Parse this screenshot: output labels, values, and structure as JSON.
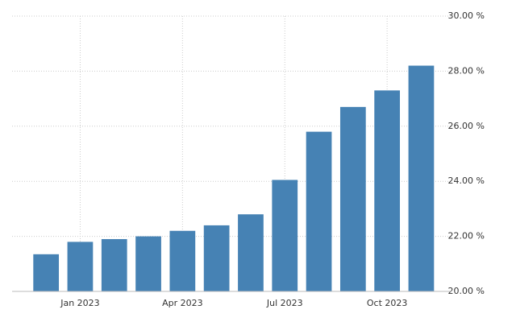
{
  "chart_data": {
    "type": "bar",
    "categories": [
      null,
      "Jan 2023",
      null,
      null,
      "Apr 2023",
      null,
      null,
      "Jul 2023",
      null,
      null,
      "Oct 2023",
      null
    ],
    "values": [
      21.35,
      21.8,
      21.9,
      22.0,
      22.2,
      22.4,
      22.8,
      24.05,
      25.8,
      26.7,
      27.3,
      28.2
    ],
    "color": "#4682b4",
    "ylim": [
      20,
      30
    ],
    "yticks": [
      {
        "value": 20,
        "label": "20.00 %"
      },
      {
        "value": 22,
        "label": "22.00 %"
      },
      {
        "value": 24,
        "label": "24.00 %"
      },
      {
        "value": 26,
        "label": "26.00 %"
      },
      {
        "value": 28,
        "label": "28.00 %"
      },
      {
        "value": 30,
        "label": "30.00 %"
      }
    ],
    "grid": true
  }
}
